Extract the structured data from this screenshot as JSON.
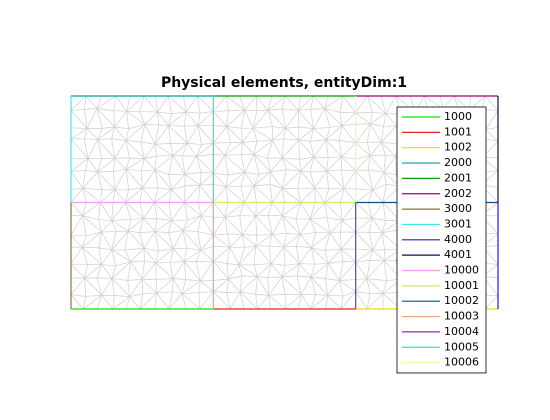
{
  "chart_data": {
    "type": "line",
    "title": "Physical elements, entityDim:1",
    "xlim": [
      0,
      3
    ],
    "ylim": [
      0,
      2
    ],
    "series": [
      {
        "name": "1000",
        "color": "#00ee00",
        "x": [
          0,
          1
        ],
        "y": [
          0,
          0
        ]
      },
      {
        "name": "1001",
        "color": "#ee2020",
        "x": [
          1,
          2
        ],
        "y": [
          0,
          0
        ]
      },
      {
        "name": "1002",
        "color": "#e8e000",
        "x": [
          2,
          3
        ],
        "y": [
          0,
          0
        ]
      },
      {
        "name": "2000",
        "color": "#00a0a0",
        "x": [
          0,
          1
        ],
        "y": [
          2,
          2
        ]
      },
      {
        "name": "2001",
        "color": "#00a000",
        "x": [
          1,
          2
        ],
        "y": [
          2,
          2
        ]
      },
      {
        "name": "2002",
        "color": "#a00070",
        "x": [
          2,
          3
        ],
        "y": [
          2,
          2
        ]
      },
      {
        "name": "3000",
        "color": "#907040",
        "x": [
          0,
          0
        ],
        "y": [
          0,
          1
        ]
      },
      {
        "name": "3001",
        "color": "#40e8e8",
        "x": [
          0,
          0
        ],
        "y": [
          1,
          2
        ]
      },
      {
        "name": "4000",
        "color": "#2020c0",
        "x": [
          3,
          3
        ],
        "y": [
          0,
          1
        ]
      },
      {
        "name": "4001",
        "color": "#101040",
        "x": [
          3,
          3
        ],
        "y": [
          1,
          2
        ]
      },
      {
        "name": "10000",
        "color": "#f0a0f0",
        "x": [
          0,
          1
        ],
        "y": [
          1,
          1
        ]
      },
      {
        "name": "10001",
        "color": "#c8f060",
        "x": [
          1,
          2
        ],
        "y": [
          1,
          1
        ]
      },
      {
        "name": "10002",
        "color": "#105080",
        "x": [
          2,
          3
        ],
        "y": [
          1,
          1
        ]
      },
      {
        "name": "10003",
        "color": "#f8a080",
        "x": [
          1,
          1
        ],
        "y": [
          0,
          1
        ]
      },
      {
        "name": "10004",
        "color": "#8030c0",
        "x": [
          2,
          2
        ],
        "y": [
          0,
          1
        ]
      },
      {
        "name": "10005",
        "color": "#30e0e0",
        "x": [
          1,
          1
        ],
        "y": [
          1,
          2
        ]
      },
      {
        "name": "10006",
        "color": "#fff0b0",
        "x": [
          2,
          2
        ],
        "y": [
          1,
          2
        ]
      }
    ]
  }
}
